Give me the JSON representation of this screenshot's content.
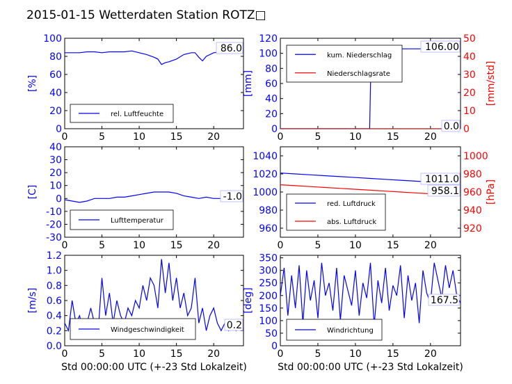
{
  "title": "2015-01-15 Wetterdaten Station ROTZ□",
  "colors": {
    "primary": "#0000ff",
    "secondary": "#ff0000",
    "text": "#000000"
  },
  "chart_data": [
    {
      "type": "line",
      "ylabel": "[%]",
      "xlim": [
        0,
        24
      ],
      "ylim": [
        0,
        100
      ],
      "yticks": [
        0,
        20,
        40,
        60,
        80,
        100
      ],
      "xticks": [
        0,
        5,
        10,
        15,
        20
      ],
      "annotation": "86.0",
      "legend": "lower-left",
      "series": [
        {
          "name": "rel. Luftfeuchte",
          "color": "#0000ff",
          "x": [
            0,
            1,
            2,
            3,
            4,
            5,
            6,
            7,
            8,
            9,
            10,
            11,
            12,
            12.5,
            13,
            13.5,
            14,
            15,
            16,
            17,
            17.5,
            18,
            18.5,
            19,
            20,
            21,
            22,
            23,
            24
          ],
          "y": [
            84,
            84,
            84,
            85,
            85,
            84,
            85,
            85,
            85,
            86,
            84,
            82,
            79,
            77,
            71,
            73,
            74,
            77,
            82,
            84,
            84,
            79,
            75,
            80,
            84,
            85,
            86,
            86,
            86
          ]
        }
      ]
    },
    {
      "type": "line",
      "ylabel": "[mm]",
      "ylabel_right": "[mm/std]",
      "xlim": [
        0,
        24
      ],
      "ylim": [
        0,
        120
      ],
      "ylim_right": [
        0,
        50
      ],
      "yticks": [
        0,
        20,
        40,
        60,
        80,
        100,
        120
      ],
      "yticks_right": [
        0,
        10,
        20,
        30,
        40,
        50
      ],
      "xticks": [
        0,
        5,
        10,
        15,
        20
      ],
      "annotations": [
        "106.00",
        "0.0"
      ],
      "legend": "upper-left",
      "series": [
        {
          "name": "kum. Niederschlag",
          "color": "#0000ff",
          "x": [
            0,
            11.9,
            12.1,
            24
          ],
          "y": [
            0,
            0,
            106,
            106
          ]
        },
        {
          "name": "Niederschlagsrate",
          "color": "#ff0000",
          "axis": "right",
          "x": [
            0,
            24
          ],
          "y": [
            0,
            0
          ]
        }
      ]
    },
    {
      "type": "line",
      "ylabel": "[C]",
      "xlim": [
        0,
        24
      ],
      "ylim": [
        -30,
        40
      ],
      "yticks": [
        -30,
        -20,
        -10,
        0,
        10,
        20,
        30,
        40
      ],
      "xticks": [
        0,
        5,
        10,
        15,
        20
      ],
      "annotation": "-1.0",
      "legend": "lower-left",
      "series": [
        {
          "name": "Lufttemperatur",
          "color": "#0000ff",
          "x": [
            0,
            1,
            2,
            3,
            4,
            5,
            6,
            7,
            8,
            9,
            10,
            11,
            12,
            13,
            14,
            15,
            16,
            17,
            18,
            19,
            20,
            21,
            22,
            23,
            24
          ],
          "y": [
            -1,
            -2,
            -3,
            -2,
            0,
            0,
            0,
            1,
            1,
            2,
            3,
            4,
            5,
            5,
            5,
            4,
            2,
            1,
            0,
            1,
            0,
            0,
            -1,
            -1,
            -1
          ]
        }
      ]
    },
    {
      "type": "line",
      "ylabel_right": "[hPa]",
      "xlim": [
        0,
        24
      ],
      "ylim": [
        950,
        1050
      ],
      "ylim_right": [
        910,
        1010
      ],
      "yticks": [
        960,
        980,
        1000,
        1020,
        1040
      ],
      "yticks_right": [
        920,
        940,
        960,
        980,
        1000
      ],
      "xticks": [
        0,
        5,
        10,
        15,
        20
      ],
      "annotations": [
        "1011.0",
        "958.1"
      ],
      "legend": "lower-left",
      "series": [
        {
          "name": "red. Luftdruck",
          "color": "#0000ff",
          "x": [
            0,
            2,
            4,
            6,
            8,
            10,
            12,
            14,
            16,
            18,
            20,
            22,
            24
          ],
          "y": [
            1021,
            1020,
            1019,
            1018,
            1017,
            1016,
            1015,
            1014,
            1013,
            1012,
            1011,
            1011,
            1011
          ]
        },
        {
          "name": "abs. Luftdruck",
          "color": "#ff0000",
          "axis": "right",
          "x": [
            0,
            2,
            4,
            6,
            8,
            10,
            12,
            14,
            16,
            18,
            20,
            22,
            24
          ],
          "y": [
            968,
            967,
            966,
            965,
            964,
            963,
            962,
            961,
            960,
            959,
            958,
            958,
            958
          ]
        }
      ]
    },
    {
      "type": "line",
      "ylabel": "[m/s]",
      "xlabel": "Std 00:00:00 UTC (+-23 Std Lokalzeit)",
      "xlim": [
        0,
        24
      ],
      "ylim": [
        0,
        1.2
      ],
      "yticks": [
        0.0,
        0.2,
        0.4,
        0.6,
        0.8,
        1.0,
        1.2
      ],
      "xticks": [
        0,
        5,
        10,
        15,
        20
      ],
      "annotation": "0.2",
      "legend": "lower-left",
      "series": [
        {
          "name": "Windgeschwindigkeit",
          "color": "#0000ff",
          "x": [
            0,
            0.5,
            1,
            1.5,
            2,
            2.5,
            3,
            3.5,
            4,
            4.5,
            5,
            5.5,
            6,
            6.5,
            7,
            7.5,
            8,
            8.5,
            9,
            9.5,
            10,
            10.5,
            11,
            11.5,
            12,
            12.5,
            13,
            13.5,
            14,
            14.5,
            15,
            15.5,
            16,
            16.5,
            17,
            17.5,
            18,
            18.5,
            19,
            19.5,
            20,
            20.5,
            21,
            21.5,
            22,
            22.5,
            23,
            23.5,
            24
          ],
          "y": [
            0.3,
            0.2,
            0.6,
            0.3,
            0.4,
            0.2,
            0.3,
            0.5,
            0.3,
            0.2,
            0.9,
            0.4,
            0.7,
            0.3,
            0.6,
            0.4,
            0.3,
            0.5,
            0.4,
            0.6,
            0.5,
            0.8,
            0.6,
            0.9,
            0.8,
            0.5,
            1.15,
            0.7,
            1.1,
            0.6,
            0.9,
            0.5,
            0.7,
            0.4,
            0.5,
            0.9,
            0.3,
            0.5,
            0.2,
            0.4,
            0.5,
            0.3,
            0.2,
            0.3,
            0.2,
            0.3,
            0.2,
            0.3,
            0.2
          ]
        }
      ]
    },
    {
      "type": "line",
      "ylabel": "[deg]",
      "xlabel": "Std 00:00:00 UTC (+-23 Std Lokalzeit)",
      "xlim": [
        0,
        24
      ],
      "ylim": [
        0,
        360
      ],
      "yticks": [
        0,
        50,
        100,
        150,
        200,
        250,
        300,
        350
      ],
      "xticks": [
        0,
        5,
        10,
        15,
        20
      ],
      "annotation": "167.5",
      "legend": "lower-left",
      "series": [
        {
          "name": "Windrichtung",
          "color": "#0000ff",
          "x": [
            0,
            0.5,
            1,
            1.5,
            2,
            2.5,
            3,
            3.5,
            4,
            4.5,
            5,
            5.5,
            6,
            6.5,
            7,
            7.5,
            8,
            8.5,
            9,
            9.5,
            10,
            10.5,
            11,
            11.5,
            12,
            12.5,
            13,
            13.5,
            14,
            14.5,
            15,
            15.5,
            16,
            16.5,
            17,
            17.5,
            18,
            18.5,
            19,
            19.5,
            20,
            20.5,
            21,
            21.5,
            22,
            22.5,
            23,
            23.5,
            24
          ],
          "y": [
            200,
            310,
            120,
            280,
            150,
            320,
            90,
            300,
            180,
            260,
            110,
            330,
            200,
            250,
            140,
            310,
            100,
            280,
            220,
            160,
            300,
            120,
            250,
            190,
            330,
            80,
            260,
            170,
            310,
            140,
            240,
            200,
            320,
            110,
            280,
            180,
            250,
            90,
            300,
            210,
            170,
            330,
            260,
            190,
            320,
            230,
            300,
            200,
            170
          ]
        }
      ]
    }
  ]
}
